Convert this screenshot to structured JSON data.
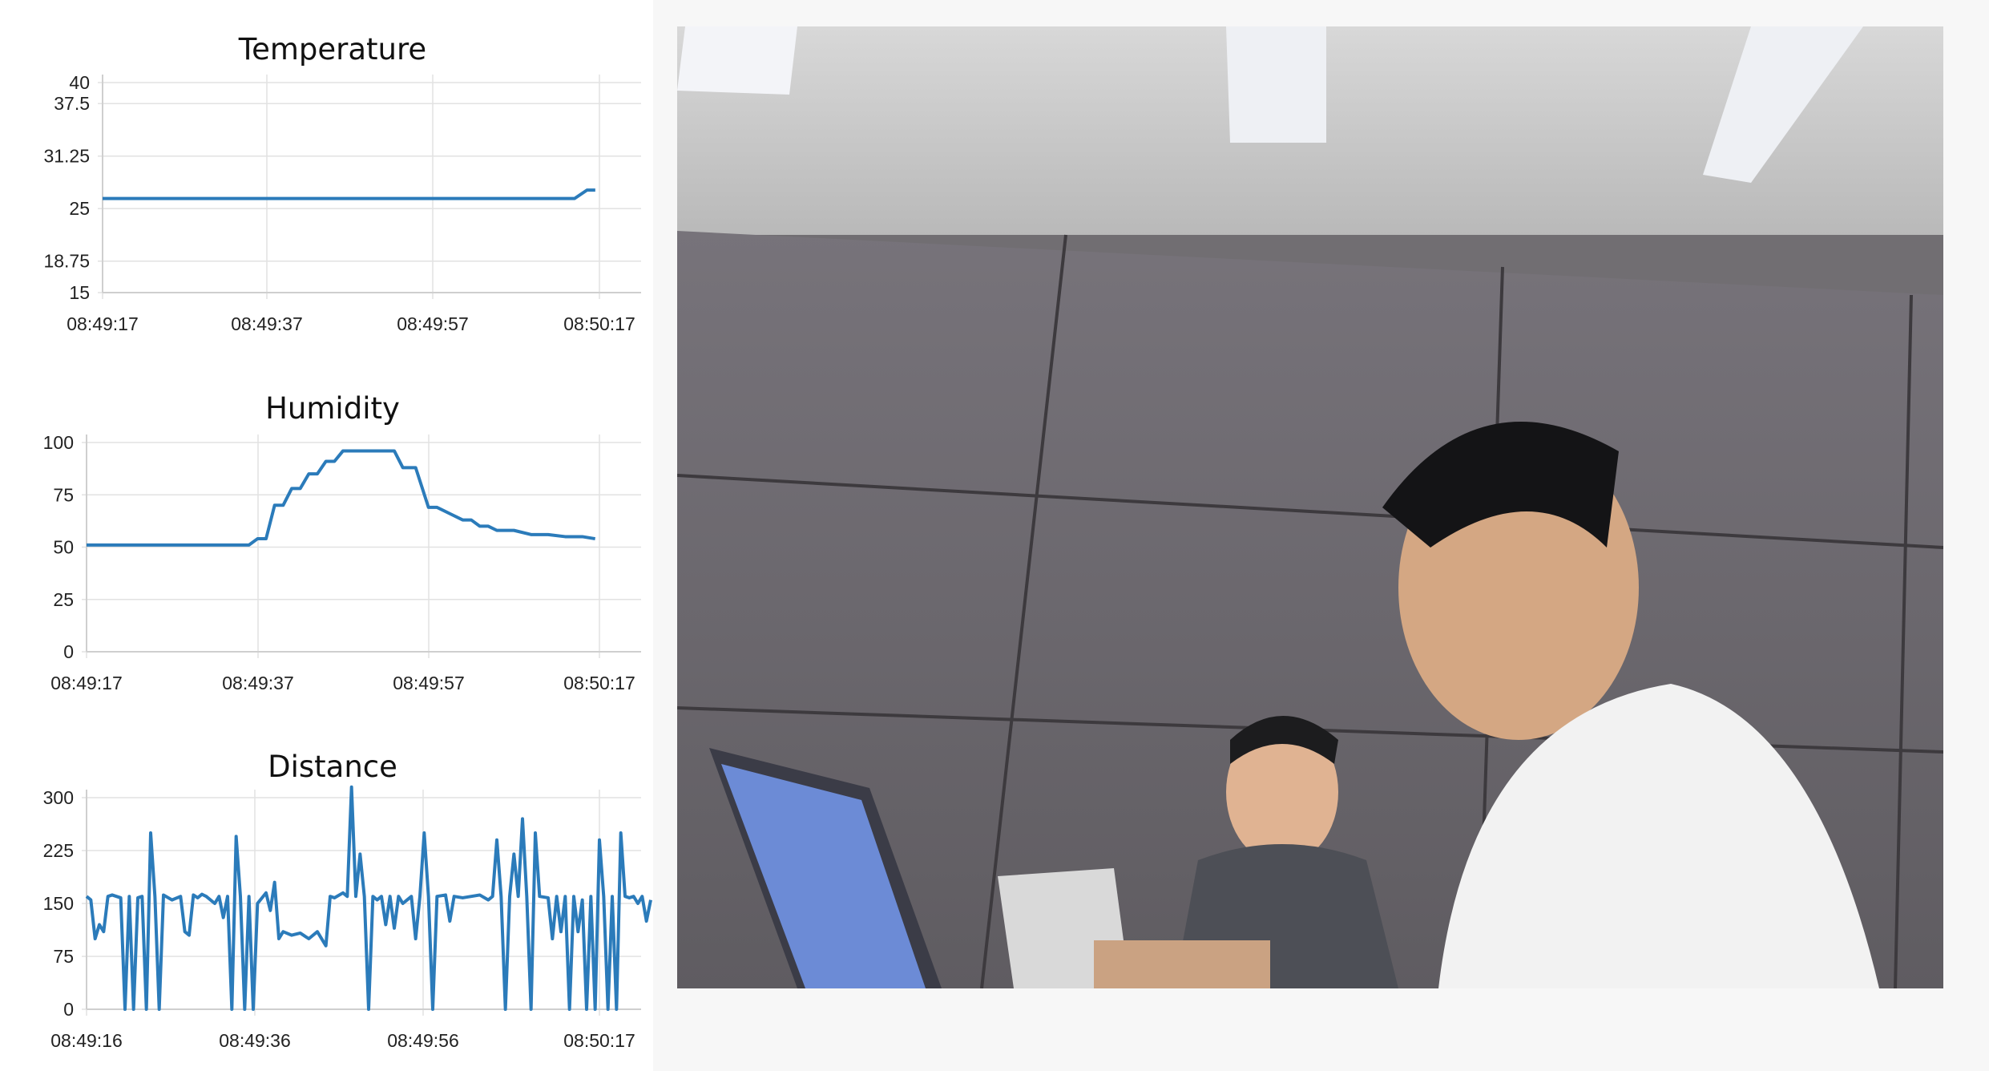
{
  "charts": {
    "temperature": {
      "title": "Temperature"
    },
    "humidity": {
      "title": "Humidity"
    },
    "distance": {
      "title": "Distance"
    }
  },
  "chart_data": [
    {
      "type": "line",
      "title": "Temperature",
      "x": [
        "08:49:17",
        "08:49:37",
        "08:49:57",
        "08:50:17"
      ],
      "x_ticks": [
        "08:49:17",
        "08:49:37",
        "08:49:57",
        "08:50:17"
      ],
      "y_ticks": [
        15,
        18.75,
        25,
        31.25,
        37.5,
        40
      ],
      "ylim": [
        15,
        40
      ],
      "grid": true,
      "line_color": "#2b7bba",
      "series": [
        {
          "points": [
            [
              0,
              26.2
            ],
            [
              57,
              26.2
            ],
            [
              58.5,
              27.2
            ],
            [
              59.5,
              27.2
            ]
          ]
        }
      ]
    },
    {
      "type": "line",
      "title": "Humidity",
      "x_ticks": [
        "08:49:17",
        "08:49:37",
        "08:49:57",
        "08:50:17"
      ],
      "y_ticks": [
        0,
        25,
        50,
        75,
        100
      ],
      "ylim": [
        0,
        100
      ],
      "grid": true,
      "line_color": "#2b7bba",
      "series": [
        {
          "points": [
            [
              0,
              51
            ],
            [
              19,
              51
            ],
            [
              20,
              54
            ],
            [
              21,
              54
            ],
            [
              22,
              70
            ],
            [
              23,
              70
            ],
            [
              24,
              78
            ],
            [
              25,
              78
            ],
            [
              26,
              85
            ],
            [
              27,
              85
            ],
            [
              28,
              91
            ],
            [
              29,
              91
            ],
            [
              30,
              96
            ],
            [
              36,
              96
            ],
            [
              37,
              88
            ],
            [
              38.5,
              88
            ],
            [
              40,
              69
            ],
            [
              41,
              69
            ],
            [
              42.5,
              66
            ],
            [
              44,
              63
            ],
            [
              45,
              63
            ],
            [
              46,
              60
            ],
            [
              47,
              60
            ],
            [
              48,
              58
            ],
            [
              50,
              58
            ],
            [
              52,
              56
            ],
            [
              54,
              56
            ],
            [
              56,
              55
            ],
            [
              58,
              55
            ],
            [
              59.5,
              54
            ]
          ]
        }
      ]
    },
    {
      "type": "line",
      "title": "Distance",
      "x_ticks": [
        "08:49:16",
        "08:49:36",
        "08:49:56",
        "08:50:17"
      ],
      "y_ticks": [
        0,
        75,
        150,
        225,
        300
      ],
      "ylim": [
        0,
        300
      ],
      "grid": true,
      "line_color": "#2b7bba",
      "series": [
        {
          "points": [
            [
              0,
              160
            ],
            [
              0.5,
              155
            ],
            [
              1,
              100
            ],
            [
              1.5,
              120
            ],
            [
              2,
              110
            ],
            [
              2.5,
              160
            ],
            [
              3,
              162
            ],
            [
              4,
              158
            ],
            [
              4.5,
              0
            ],
            [
              5,
              160
            ],
            [
              5.5,
              0
            ],
            [
              6,
              158
            ],
            [
              6.5,
              160
            ],
            [
              7,
              0
            ],
            [
              7.5,
              250
            ],
            [
              8,
              160
            ],
            [
              8.5,
              0
            ],
            [
              9,
              162
            ],
            [
              10,
              155
            ],
            [
              11,
              160
            ],
            [
              11.5,
              110
            ],
            [
              12,
              105
            ],
            [
              12.5,
              162
            ],
            [
              13,
              158
            ],
            [
              13.5,
              163
            ],
            [
              14,
              160
            ],
            [
              15,
              150
            ],
            [
              15.5,
              160
            ],
            [
              16,
              130
            ],
            [
              16.5,
              160
            ],
            [
              17,
              0
            ],
            [
              17.5,
              245
            ],
            [
              18,
              160
            ],
            [
              18.5,
              0
            ],
            [
              19,
              160
            ],
            [
              19.5,
              0
            ],
            [
              20,
              150
            ],
            [
              21,
              165
            ],
            [
              21.5,
              140
            ],
            [
              22,
              180
            ],
            [
              22.5,
              100
            ],
            [
              23,
              110
            ],
            [
              24,
              105
            ],
            [
              25,
              108
            ],
            [
              26,
              100
            ],
            [
              27,
              110
            ],
            [
              28,
              90
            ],
            [
              28.5,
              160
            ],
            [
              29,
              158
            ],
            [
              30,
              165
            ],
            [
              30.5,
              160
            ],
            [
              31,
              315
            ],
            [
              31.5,
              160
            ],
            [
              32,
              220
            ],
            [
              32.5,
              160
            ],
            [
              33,
              0
            ],
            [
              33.5,
              160
            ],
            [
              34,
              155
            ],
            [
              34.5,
              160
            ],
            [
              35,
              120
            ],
            [
              35.5,
              160
            ],
            [
              36,
              115
            ],
            [
              36.5,
              160
            ],
            [
              37,
              150
            ],
            [
              38,
              160
            ],
            [
              38.5,
              100
            ],
            [
              39,
              160
            ],
            [
              39.5,
              250
            ],
            [
              40,
              160
            ],
            [
              40.5,
              0
            ],
            [
              41,
              160
            ],
            [
              42,
              162
            ],
            [
              42.5,
              125
            ],
            [
              43,
              160
            ],
            [
              44,
              158
            ],
            [
              45,
              160
            ],
            [
              46,
              162
            ],
            [
              47,
              155
            ],
            [
              47.5,
              160
            ],
            [
              48,
              240
            ],
            [
              48.5,
              160
            ],
            [
              49,
              0
            ],
            [
              49.5,
              160
            ],
            [
              50,
              220
            ],
            [
              50.5,
              160
            ],
            [
              51,
              270
            ],
            [
              51.5,
              160
            ],
            [
              52,
              0
            ],
            [
              52.5,
              250
            ],
            [
              53,
              160
            ],
            [
              54,
              158
            ],
            [
              54.5,
              100
            ],
            [
              55,
              160
            ],
            [
              55.5,
              110
            ],
            [
              56,
              160
            ],
            [
              56.5,
              0
            ],
            [
              57,
              160
            ],
            [
              57.5,
              110
            ],
            [
              58,
              155
            ],
            [
              58.5,
              0
            ],
            [
              59,
              160
            ],
            [
              59.5,
              0
            ],
            [
              60,
              240
            ],
            [
              60.5,
              160
            ],
            [
              61,
              0
            ],
            [
              61.5,
              160
            ],
            [
              62,
              0
            ],
            [
              62.5,
              250
            ],
            [
              63,
              160
            ],
            [
              63.5,
              158
            ],
            [
              64,
              160
            ],
            [
              64.5,
              150
            ],
            [
              65,
              160
            ],
            [
              65.5,
              125
            ],
            [
              66,
              155
            ]
          ]
        }
      ]
    }
  ],
  "camera": {
    "label": "camera-feed"
  }
}
